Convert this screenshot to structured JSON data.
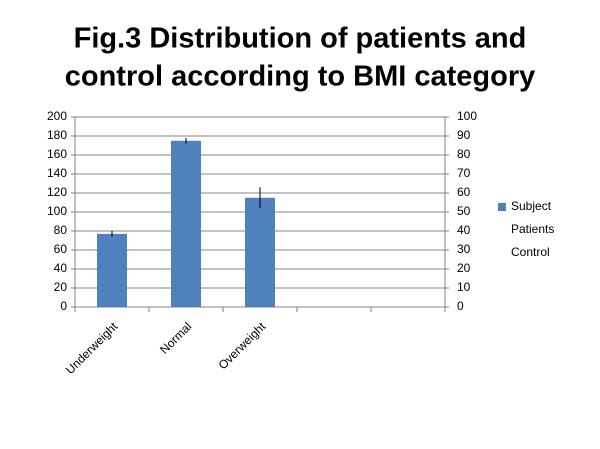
{
  "chart_data": {
    "type": "bar",
    "title": [
      "Fig.3 Distribution of patients and",
      "control according to BMI category"
    ],
    "categories": [
      "Underweight",
      "Normal",
      "Overweight",
      null,
      null
    ],
    "series": [
      {
        "name": "Subject",
        "color": "#4f81bd",
        "values": [
          77,
          175,
          115,
          null,
          null
        ],
        "errors": [
          3,
          3,
          11,
          null,
          null
        ]
      },
      {
        "name": "Patients",
        "values": [
          null,
          null,
          null,
          null,
          null
        ]
      },
      {
        "name": "Control",
        "values": [
          null,
          null,
          null,
          null,
          null
        ]
      }
    ],
    "ylim": [
      0,
      200
    ],
    "yticks": [
      0,
      20,
      40,
      60,
      80,
      100,
      120,
      140,
      160,
      180,
      200
    ],
    "y2lim": [
      0,
      100
    ],
    "y2ticks": [
      0,
      10,
      20,
      30,
      40,
      50,
      60,
      70,
      80,
      90,
      100
    ],
    "grid": true,
    "legend": "right"
  }
}
